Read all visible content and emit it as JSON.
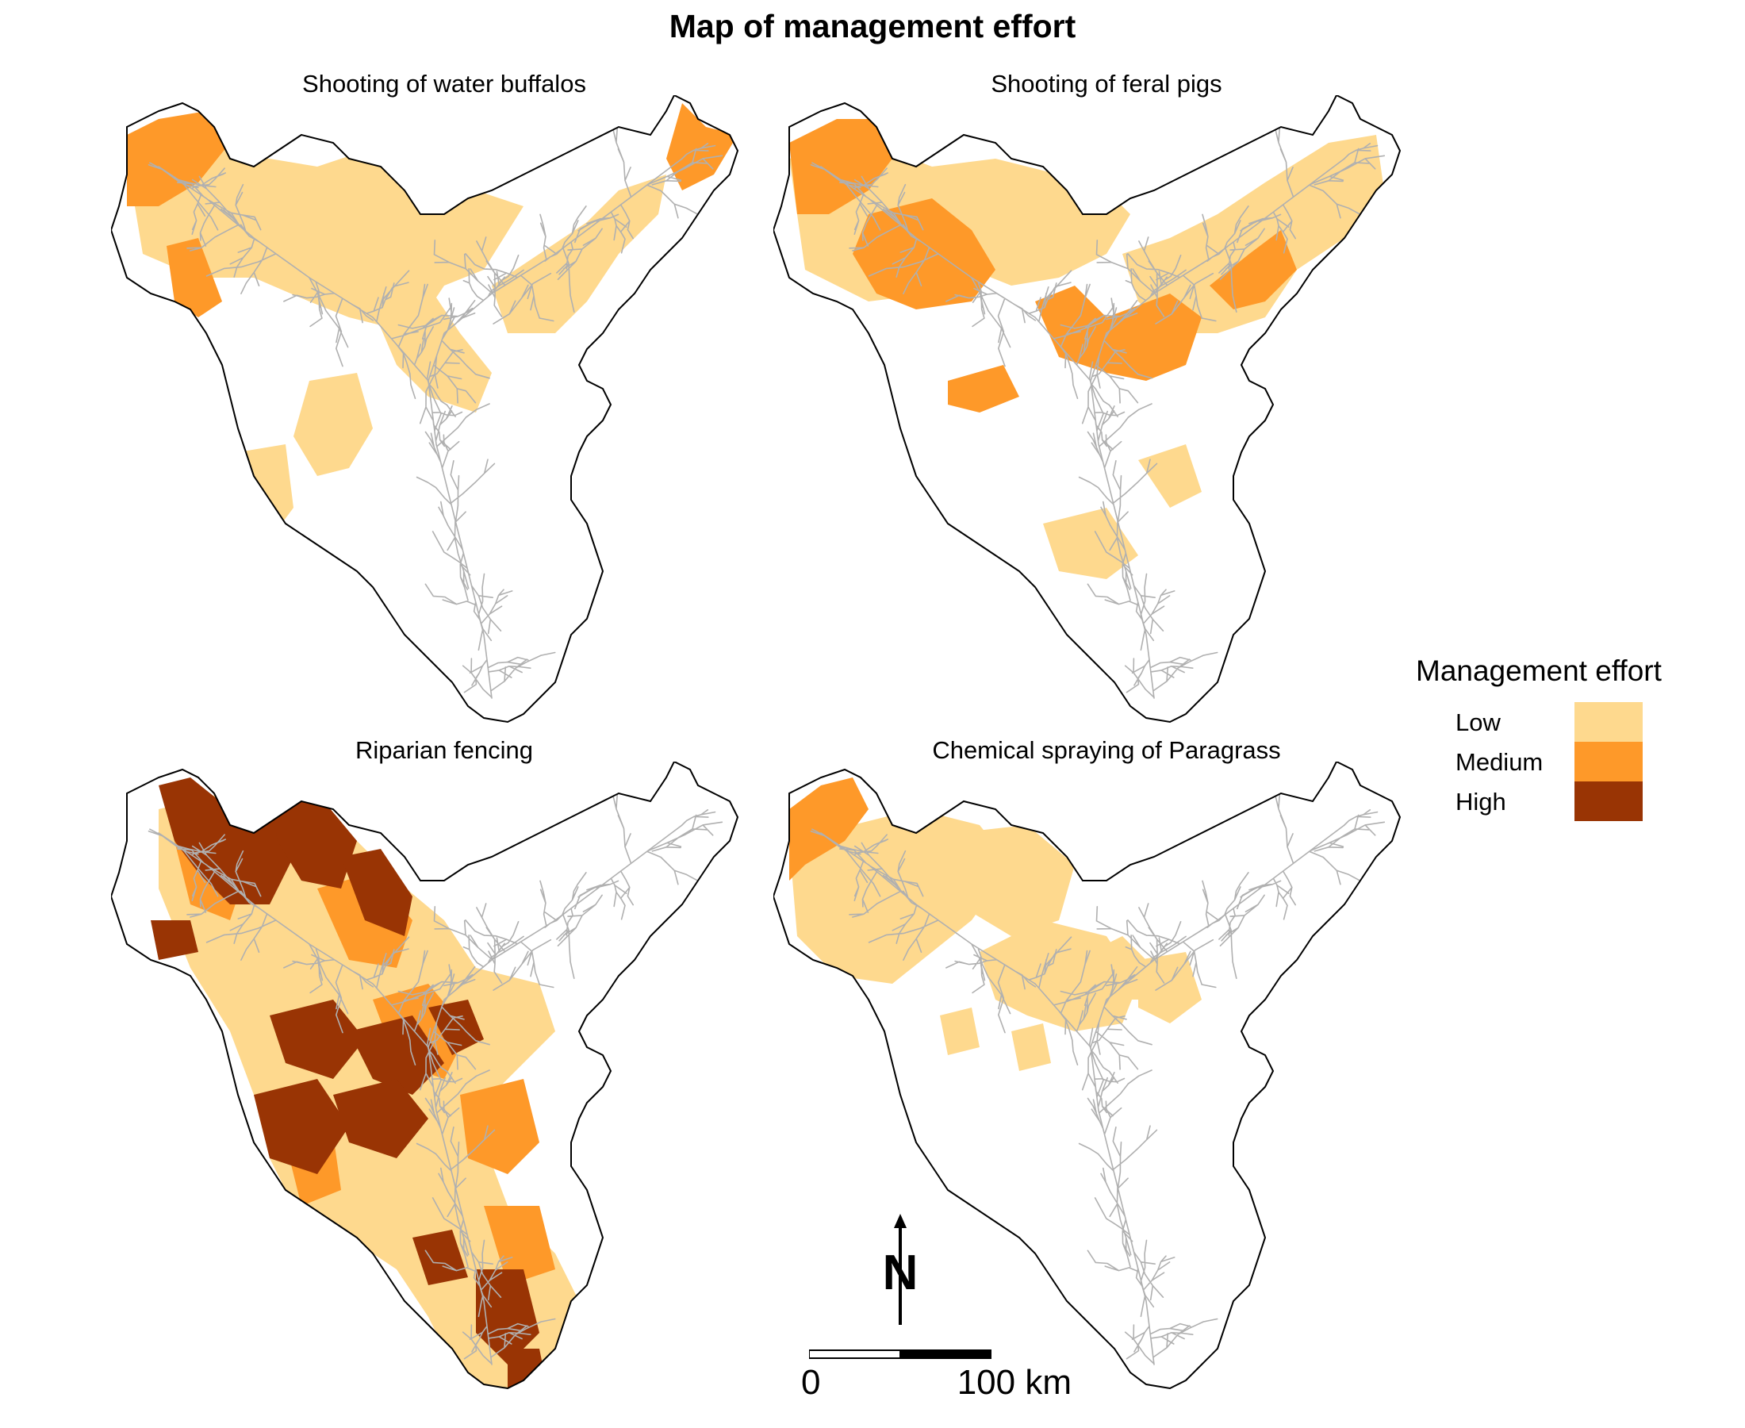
{
  "title": "Map of management effort",
  "colors": {
    "low": "#FED98E",
    "medium": "#FE9929",
    "high": "#993404",
    "river": "#B0B0B0",
    "outline": "#000000"
  },
  "panels": [
    {
      "id": "buffalo",
      "title": "Shooting of water buffalos"
    },
    {
      "id": "pigs",
      "title": "Shooting of feral pigs"
    },
    {
      "id": "fencing",
      "title": "Riparian fencing"
    },
    {
      "id": "paragrass",
      "title": "Chemical spraying of Paragrass"
    }
  ],
  "legend": {
    "title": "Management effort",
    "items": [
      {
        "label": "Low",
        "color": "#FED98E"
      },
      {
        "label": "Medium",
        "color": "#FE9929"
      },
      {
        "label": "High",
        "color": "#993404"
      }
    ]
  },
  "scale_bar": {
    "start_label": "0",
    "end_label": "100 km"
  },
  "north_arrow": {
    "label": "N"
  }
}
